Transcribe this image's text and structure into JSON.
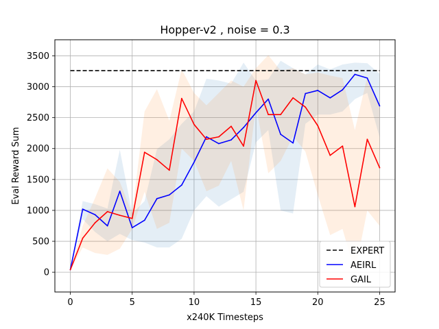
{
  "chart_data": {
    "type": "line",
    "title": "Hopper-v2 , noise = 0.3",
    "xlabel": "x240K Timesteps",
    "ylabel": "Eval Reward Sum",
    "xlim": [
      -1.25,
      26.25
    ],
    "ylim": [
      -320,
      3760
    ],
    "xticks": [
      0,
      5,
      10,
      15,
      20,
      25
    ],
    "yticks": [
      0,
      500,
      1000,
      1500,
      2000,
      2500,
      3000,
      3500
    ],
    "grid": true,
    "legend_position": "lower-right",
    "x": [
      0,
      1,
      2,
      3,
      4,
      5,
      6,
      7,
      8,
      9,
      10,
      11,
      12,
      13,
      14,
      15,
      16,
      17,
      18,
      19,
      20,
      21,
      22,
      23,
      24,
      25
    ],
    "expert": {
      "name": "EXPERT",
      "value": 3260,
      "color": "#000000",
      "style": "dashed"
    },
    "series": [
      {
        "name": "AEIRL",
        "color": "#0000ff",
        "band_color": "#1f77b4",
        "values": [
          40,
          1020,
          930,
          750,
          1310,
          720,
          840,
          1190,
          1250,
          1410,
          1780,
          2190,
          2080,
          2140,
          2340,
          2580,
          2800,
          2230,
          2090,
          2890,
          2940,
          2820,
          2950,
          3200,
          3140,
          2690
        ],
        "lower": [
          40,
          860,
          650,
          500,
          620,
          520,
          480,
          400,
          400,
          540,
          1000,
          1230,
          1060,
          1180,
          1300,
          2100,
          2300,
          1000,
          950,
          2400,
          2550,
          2550,
          2600,
          2800,
          2900,
          2180
        ],
        "upper": [
          40,
          1150,
          1100,
          1030,
          1980,
          950,
          1150,
          1990,
          2150,
          2400,
          2600,
          3130,
          3100,
          3050,
          3390,
          3100,
          3120,
          3420,
          3300,
          3200,
          3360,
          3280,
          3360,
          3390,
          3380,
          3210
        ]
      },
      {
        "name": "GAIL",
        "color": "#ff0000",
        "band_color": "#ff7f0e",
        "values": [
          40,
          550,
          800,
          980,
          920,
          870,
          1940,
          1820,
          1650,
          2810,
          2390,
          2150,
          2190,
          2360,
          2040,
          3100,
          2550,
          2550,
          2820,
          2670,
          2370,
          1890,
          2040,
          1060,
          2150,
          1690
        ],
        "lower": [
          40,
          400,
          310,
          280,
          380,
          700,
          1300,
          700,
          800,
          2000,
          1800,
          1310,
          1400,
          1800,
          1000,
          2700,
          1600,
          1800,
          2200,
          1950,
          1250,
          600,
          700,
          0,
          1000,
          750
        ],
        "upper": [
          40,
          750,
          1200,
          1680,
          1460,
          950,
          2600,
          2960,
          2450,
          3280,
          2900,
          2700,
          2900,
          3100,
          3000,
          3300,
          3510,
          3260,
          3300,
          3200,
          3230,
          3180,
          3140,
          2300,
          3160,
          2700
        ]
      }
    ]
  }
}
